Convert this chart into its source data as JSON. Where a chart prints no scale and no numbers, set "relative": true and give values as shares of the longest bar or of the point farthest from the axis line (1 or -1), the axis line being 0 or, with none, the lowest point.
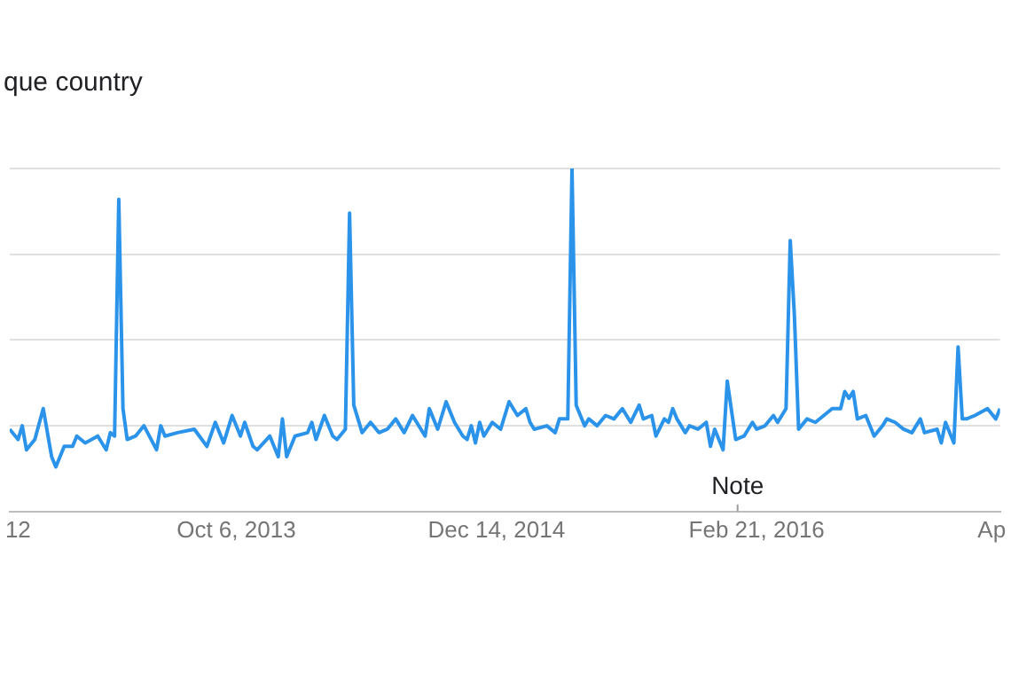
{
  "chart_data": {
    "type": "line",
    "title": "que country",
    "relative": true,
    "grid": "y",
    "legend": false,
    "marker": "none",
    "line_style": "solid",
    "xlim": [
      "2012-09-23",
      "2017-04-02"
    ],
    "xticks": [
      {
        "value": "2012-10-07",
        "label": "12"
      },
      {
        "value": "2013-10-06",
        "label": "Oct 6, 2013"
      },
      {
        "value": "2014-12-14",
        "label": "Dec 14, 2014"
      },
      {
        "value": "2016-02-21",
        "label": "Feb 21, 2016"
      },
      {
        "value": "2017-03-19",
        "label": "Ap"
      }
    ],
    "annotations": [
      "Note"
    ],
    "x": [
      "2012-09-23",
      "2012-10-07",
      "2012-10-14",
      "2012-10-21",
      "2012-11-04",
      "2012-11-18",
      "2012-12-02",
      "2012-12-09",
      "2012-12-23",
      "2013-01-06",
      "2013-01-13",
      "2013-01-27",
      "2013-02-17",
      "2013-03-03",
      "2013-03-10",
      "2013-03-17",
      "2013-03-24",
      "2013-03-31",
      "2013-04-07",
      "2013-04-21",
      "2013-05-05",
      "2013-05-26",
      "2013-06-02",
      "2013-06-09",
      "2013-06-30",
      "2013-07-28",
      "2013-08-18",
      "2013-09-01",
      "2013-09-15",
      "2013-09-29",
      "2013-10-13",
      "2013-10-20",
      "2013-11-03",
      "2013-11-10",
      "2013-12-01",
      "2013-12-15",
      "2013-12-22",
      "2013-12-29",
      "2014-01-12",
      "2014-02-02",
      "2014-02-09",
      "2014-02-16",
      "2014-03-02",
      "2014-03-16",
      "2014-03-23",
      "2014-04-06",
      "2014-04-13",
      "2014-04-20",
      "2014-04-27",
      "2014-05-04",
      "2014-05-18",
      "2014-06-01",
      "2014-06-15",
      "2014-06-29",
      "2014-07-13",
      "2014-07-27",
      "2014-08-17",
      "2014-08-24",
      "2014-09-07",
      "2014-09-21",
      "2014-10-05",
      "2014-10-19",
      "2014-10-26",
      "2014-11-02",
      "2014-11-09",
      "2014-11-16",
      "2014-11-23",
      "2014-12-07",
      "2014-12-21",
      "2015-01-04",
      "2015-01-18",
      "2015-02-01",
      "2015-02-08",
      "2015-02-15",
      "2015-03-08",
      "2015-03-22",
      "2015-03-29",
      "2015-04-12",
      "2015-04-19",
      "2015-04-26",
      "2015-05-10",
      "2015-05-17",
      "2015-05-31",
      "2015-06-14",
      "2015-06-28",
      "2015-07-12",
      "2015-07-26",
      "2015-08-09",
      "2015-08-16",
      "2015-08-30",
      "2015-09-06",
      "2015-09-20",
      "2015-09-27",
      "2015-10-04",
      "2015-10-11",
      "2015-10-25",
      "2015-11-01",
      "2015-11-15",
      "2015-11-29",
      "2015-12-06",
      "2015-12-13",
      "2015-12-27",
      "2016-01-03",
      "2016-01-17",
      "2016-01-31",
      "2016-02-14",
      "2016-02-21",
      "2016-03-06",
      "2016-03-20",
      "2016-03-27",
      "2016-04-10",
      "2016-04-17",
      "2016-04-24",
      "2016-05-01",
      "2016-05-15",
      "2016-05-29",
      "2016-06-12",
      "2016-06-26",
      "2016-07-10",
      "2016-07-17",
      "2016-07-24",
      "2016-07-31",
      "2016-08-07",
      "2016-08-21",
      "2016-09-04",
      "2016-09-18",
      "2016-09-25",
      "2016-10-09",
      "2016-10-23",
      "2016-11-06",
      "2016-11-20",
      "2016-11-27",
      "2016-12-18",
      "2016-12-25",
      "2017-01-01",
      "2017-01-15",
      "2017-01-22",
      "2017-01-29",
      "2017-02-05",
      "2017-02-19",
      "2017-03-12",
      "2017-03-26",
      "2017-04-02"
    ],
    "series": [
      {
        "color": "#2b94ea",
        "values": [
          0.24,
          0.21,
          0.25,
          0.18,
          0.21,
          0.3,
          0.16,
          0.13,
          0.19,
          0.19,
          0.22,
          0.2,
          0.22,
          0.18,
          0.23,
          0.22,
          0.91,
          0.3,
          0.21,
          0.22,
          0.25,
          0.18,
          0.25,
          0.22,
          0.23,
          0.24,
          0.19,
          0.26,
          0.2,
          0.28,
          0.22,
          0.26,
          0.19,
          0.18,
          0.22,
          0.16,
          0.27,
          0.16,
          0.22,
          0.23,
          0.26,
          0.21,
          0.28,
          0.22,
          0.21,
          0.24,
          0.87,
          0.31,
          0.27,
          0.23,
          0.26,
          0.23,
          0.24,
          0.27,
          0.23,
          0.28,
          0.22,
          0.3,
          0.24,
          0.32,
          0.26,
          0.22,
          0.21,
          0.25,
          0.2,
          0.26,
          0.22,
          0.26,
          0.24,
          0.32,
          0.28,
          0.3,
          0.26,
          0.24,
          0.25,
          0.23,
          0.27,
          0.27,
          1,
          0.31,
          0.25,
          0.27,
          0.25,
          0.28,
          0.27,
          0.3,
          0.26,
          0.31,
          0.27,
          0.28,
          0.22,
          0.27,
          0.26,
          0.3,
          0.27,
          0.23,
          0.25,
          0.24,
          0.26,
          0.19,
          0.24,
          0.18,
          0.38,
          0.21,
          0.22,
          0.26,
          0.24,
          0.25,
          0.28,
          0.26,
          0.3,
          0.79,
          0.57,
          0.24,
          0.27,
          0.26,
          0.28,
          0.3,
          0.3,
          0.35,
          0.33,
          0.35,
          0.27,
          0.28,
          0.22,
          0.25,
          0.27,
          0.26,
          0.24,
          0.23,
          0.27,
          0.23,
          0.24,
          0.2,
          0.26,
          0.2,
          0.48,
          0.27,
          0.27,
          0.28,
          0.3,
          0.27,
          0.3
        ]
      }
    ]
  }
}
